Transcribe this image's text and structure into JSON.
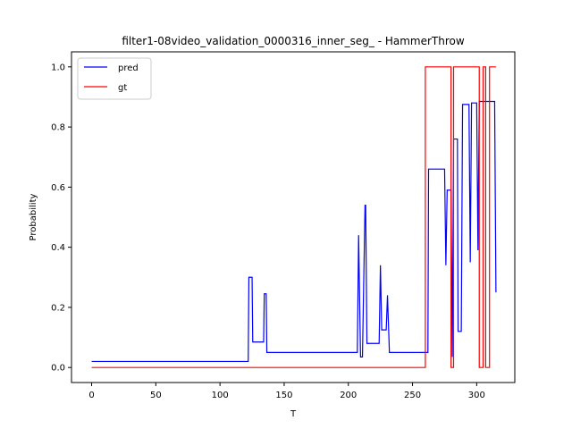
{
  "chart_data": {
    "type": "line",
    "title": "filter1-08video_validation_0000316_inner_seg_ - HammerThrow",
    "xlabel": "T",
    "ylabel": "Probability",
    "xlim": [
      -15.7,
      329.7
    ],
    "ylim": [
      -0.05,
      1.05
    ],
    "xticks": [
      0,
      50,
      100,
      150,
      200,
      250,
      300
    ],
    "yticks": [
      0.0,
      0.2,
      0.4,
      0.6,
      0.8,
      1.0
    ],
    "xtick_labels": [
      "0",
      "50",
      "100",
      "150",
      "200",
      "250",
      "300"
    ],
    "ytick_labels": [
      "0.0",
      "0.2",
      "0.4",
      "0.6",
      "0.8",
      "1.0"
    ],
    "grid": false,
    "legend_position": "top-left",
    "series": [
      {
        "name": "pred",
        "color": "#0000ff",
        "x": [
          0,
          122,
          122.5,
          125,
          125.5,
          134,
          134.5,
          136,
          136.5,
          207,
          208,
          209.5,
          211,
          213,
          213.5,
          214.5,
          215.5,
          224,
          225,
          226,
          227.5,
          229.5,
          230.5,
          232,
          262,
          262.5,
          275,
          276,
          277,
          280,
          281,
          282,
          285,
          285.5,
          288,
          289,
          290,
          290.5,
          294,
          295,
          296,
          297,
          300,
          301,
          302,
          303,
          304,
          314,
          315
        ],
        "y": [
          0.02,
          0.02,
          0.3,
          0.3,
          0.085,
          0.085,
          0.245,
          0.245,
          0.05,
          0.05,
          0.44,
          0.035,
          0.035,
          0.54,
          0.54,
          0.08,
          0.08,
          0.08,
          0.34,
          0.125,
          0.125,
          0.125,
          0.24,
          0.05,
          0.05,
          0.66,
          0.66,
          0.34,
          0.59,
          0.59,
          0.035,
          0.76,
          0.76,
          0.12,
          0.12,
          0.875,
          0.875,
          0.875,
          0.875,
          0.35,
          0.88,
          0.88,
          0.88,
          0.39,
          0.885,
          0.885,
          0.885,
          0.885,
          0.25
        ]
      },
      {
        "name": "gt",
        "color": "#ff0000",
        "x": [
          0,
          260,
          260,
          280,
          280,
          282,
          282,
          302,
          302,
          305,
          305,
          307,
          307,
          310,
          310,
          315
        ],
        "y": [
          0,
          0,
          1,
          1,
          0,
          0,
          1,
          1,
          0,
          0,
          1,
          1,
          0,
          0,
          1,
          1
        ]
      }
    ]
  }
}
